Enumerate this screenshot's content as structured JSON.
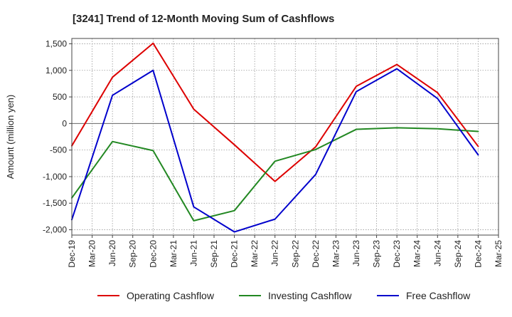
{
  "chart_data": {
    "type": "line",
    "title": "[3241]  Trend of 12-Month Moving Sum of Cashflows",
    "ylabel": "Amount (million yen)",
    "xlabel": "",
    "ylim": [
      -2100,
      1600
    ],
    "yticks": [
      1500,
      1000,
      500,
      0,
      -500,
      -1000,
      -1500,
      -2000
    ],
    "ytick_labels": [
      "1,500",
      "1,000",
      "500",
      "0",
      "-500",
      "-1,000",
      "-1,500",
      "-2,000"
    ],
    "x_tick_labels": [
      "Dec-19",
      "Mar-20",
      "Jun-20",
      "Sep-20",
      "Dec-20",
      "Mar-21",
      "Jun-21",
      "Sep-21",
      "Dec-21",
      "Mar-22",
      "Jun-22",
      "Sep-22",
      "Dec-22",
      "Mar-23",
      "Jun-23",
      "Sep-23",
      "Dec-23",
      "Mar-24",
      "Jun-24",
      "Sep-24",
      "Dec-24",
      "Mar-25"
    ],
    "grid": true,
    "legend_position": "bottom",
    "series": [
      {
        "name": "Operating Cashflow",
        "color": "#dd0000",
        "x": [
          "Dec-19",
          "Jun-20",
          "Dec-20",
          "Jun-21",
          "Dec-21",
          "Jun-22",
          "Dec-22",
          "Jun-23",
          "Dec-23",
          "Jun-24",
          "Dec-24"
        ],
        "values": [
          -420,
          870,
          1510,
          270,
          -400,
          -1090,
          -440,
          700,
          1110,
          580,
          -430
        ]
      },
      {
        "name": "Investing Cashflow",
        "color": "#228822",
        "x": [
          "Dec-19",
          "Jun-20",
          "Dec-20",
          "Jun-21",
          "Dec-21",
          "Jun-22",
          "Dec-22",
          "Jun-23",
          "Dec-23",
          "Jun-24",
          "Dec-24"
        ],
        "values": [
          -1400,
          -340,
          -510,
          -1830,
          -1640,
          -710,
          -490,
          -110,
          -80,
          -100,
          -150
        ]
      },
      {
        "name": "Free Cashflow",
        "color": "#0000cc",
        "x": [
          "Dec-19",
          "Jun-20",
          "Dec-20",
          "Jun-21",
          "Dec-21",
          "Jun-22",
          "Dec-22",
          "Jun-23",
          "Dec-23",
          "Jun-24",
          "Dec-24"
        ],
        "values": [
          -1810,
          530,
          1000,
          -1570,
          -2040,
          -1800,
          -960,
          600,
          1030,
          470,
          -590
        ]
      }
    ]
  }
}
